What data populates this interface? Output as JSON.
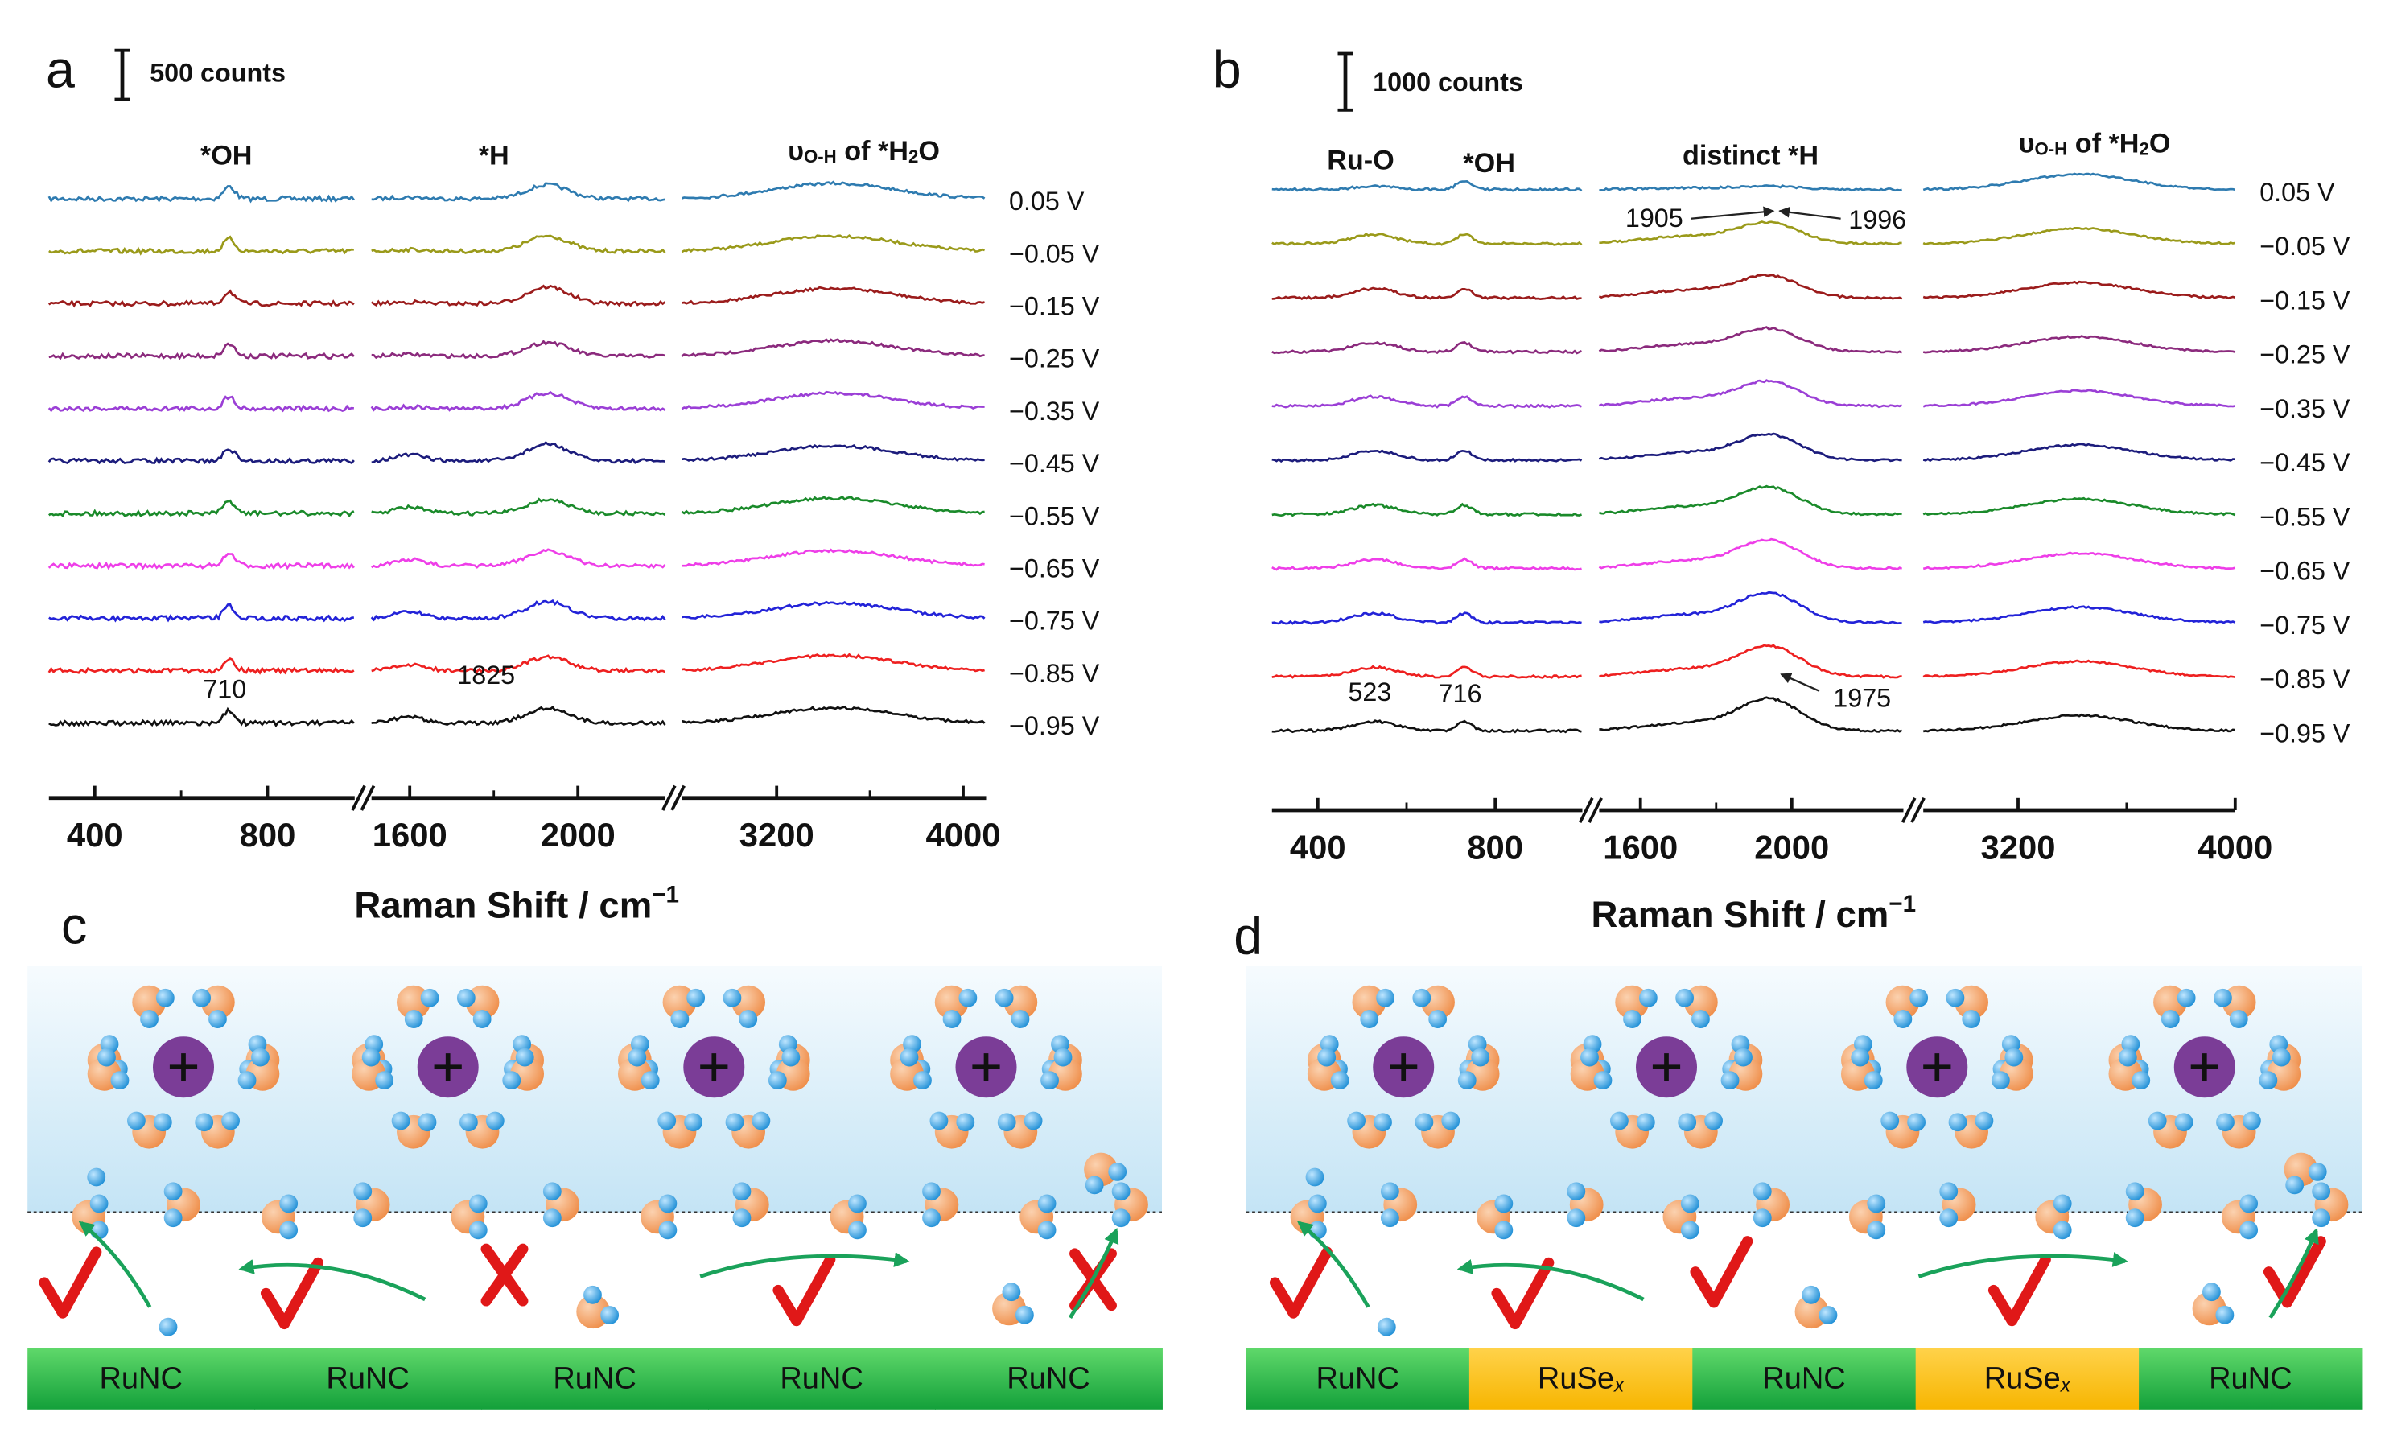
{
  "panels": [
    {
      "label": "a",
      "scale_bar": "500 counts",
      "regions": [
        {
          "parts": [
            "*OH"
          ]
        },
        {
          "parts": [
            "*H"
          ]
        },
        {
          "parts": [
            "υ",
            "O-H",
            " of *H",
            "2",
            "O"
          ]
        }
      ],
      "potentials": [
        "0.05 V",
        "−0.05 V",
        "−0.15 V",
        "−0.25 V",
        "−0.35 V",
        "−0.45 V",
        "−0.55 V",
        "−0.65 V",
        "−0.75 V",
        "−0.85 V",
        "−0.95 V"
      ],
      "peak_labels": [
        710,
        1825
      ],
      "ticks": [
        400,
        800,
        1600,
        2000,
        3200,
        4000
      ],
      "axis_title": {
        "parts": [
          "Raman Shift / cm",
          "−1"
        ]
      }
    },
    {
      "label": "b",
      "scale_bar": "1000 counts",
      "regions": [
        {
          "parts": [
            "Ru-O"
          ]
        },
        {
          "parts": [
            "*OH"
          ]
        },
        {
          "parts": [
            "distinct *H"
          ]
        },
        {
          "parts": [
            "υ",
            "O-H",
            " of *H",
            "2",
            "O"
          ]
        }
      ],
      "potentials": [
        "0.05 V",
        "−0.05 V",
        "−0.15 V",
        "−0.25 V",
        "−0.35 V",
        "−0.45 V",
        "−0.55 V",
        "−0.65 V",
        "−0.75 V",
        "−0.85 V",
        "−0.95 V"
      ],
      "peak_labels": [
        523,
        716,
        1905,
        1996,
        1975
      ],
      "ticks": [
        400,
        800,
        1600,
        2000,
        3200,
        4000
      ],
      "axis_title": {
        "parts": [
          "Raman Shift / cm",
          "−1"
        ]
      }
    }
  ],
  "schemes": [
    {
      "label": "c",
      "substrate": [
        {
          "parts": [
            "RuNC"
          ]
        },
        {
          "parts": [
            "RuNC"
          ]
        },
        {
          "parts": [
            "RuNC"
          ]
        },
        {
          "parts": [
            "RuNC"
          ]
        },
        {
          "parts": [
            "RuNC"
          ]
        }
      ]
    },
    {
      "label": "d",
      "substrate": [
        {
          "parts": [
            "RuNC"
          ]
        },
        {
          "parts": [
            "RuSe",
            "x"
          ]
        },
        {
          "parts": [
            "RuNC"
          ]
        },
        {
          "parts": [
            "RuSe",
            "x"
          ]
        },
        {
          "parts": [
            "RuNC"
          ]
        }
      ]
    }
  ]
}
